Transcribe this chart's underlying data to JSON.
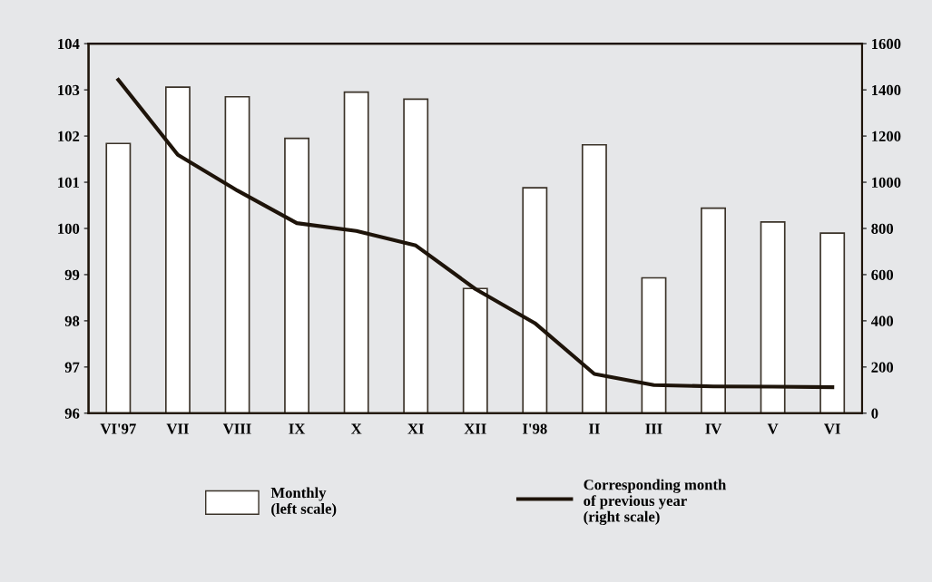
{
  "chart_data": {
    "type": "bar",
    "categories": [
      "VI'97",
      "VII",
      "VIII",
      "IX",
      "X",
      "XI",
      "XII",
      "I'98",
      "II",
      "III",
      "IV",
      "V",
      "VI"
    ],
    "series": [
      {
        "name": "Monthly\n(left scale)",
        "color": "#ffffff",
        "values": [
          101.84,
          103.06,
          102.85,
          101.95,
          102.95,
          102.8,
          98.7,
          100.88,
          101.81,
          98.93,
          100.44,
          100.14,
          99.9
        ]
      },
      {
        "name": "Corresponding month\nof previous year\n(right scale)",
        "type": "line",
        "axis": "y2",
        "color": "#1e140a",
        "values": [
          1443,
          1119,
          964,
          823,
          789,
          726,
          538,
          390,
          170,
          122,
          116,
          115,
          113
        ]
      }
    ],
    "ylim": [
      96,
      104
    ],
    "yticks": [
      96,
      97,
      98,
      99,
      100,
      101,
      102,
      103,
      104
    ],
    "y2lim": [
      0,
      1600
    ],
    "y2ticks": [
      0,
      200,
      400,
      600,
      800,
      1000,
      1200,
      1400,
      1600
    ],
    "grid": false,
    "legend": "bottom",
    "marker": "none",
    "line_style": "solid"
  }
}
